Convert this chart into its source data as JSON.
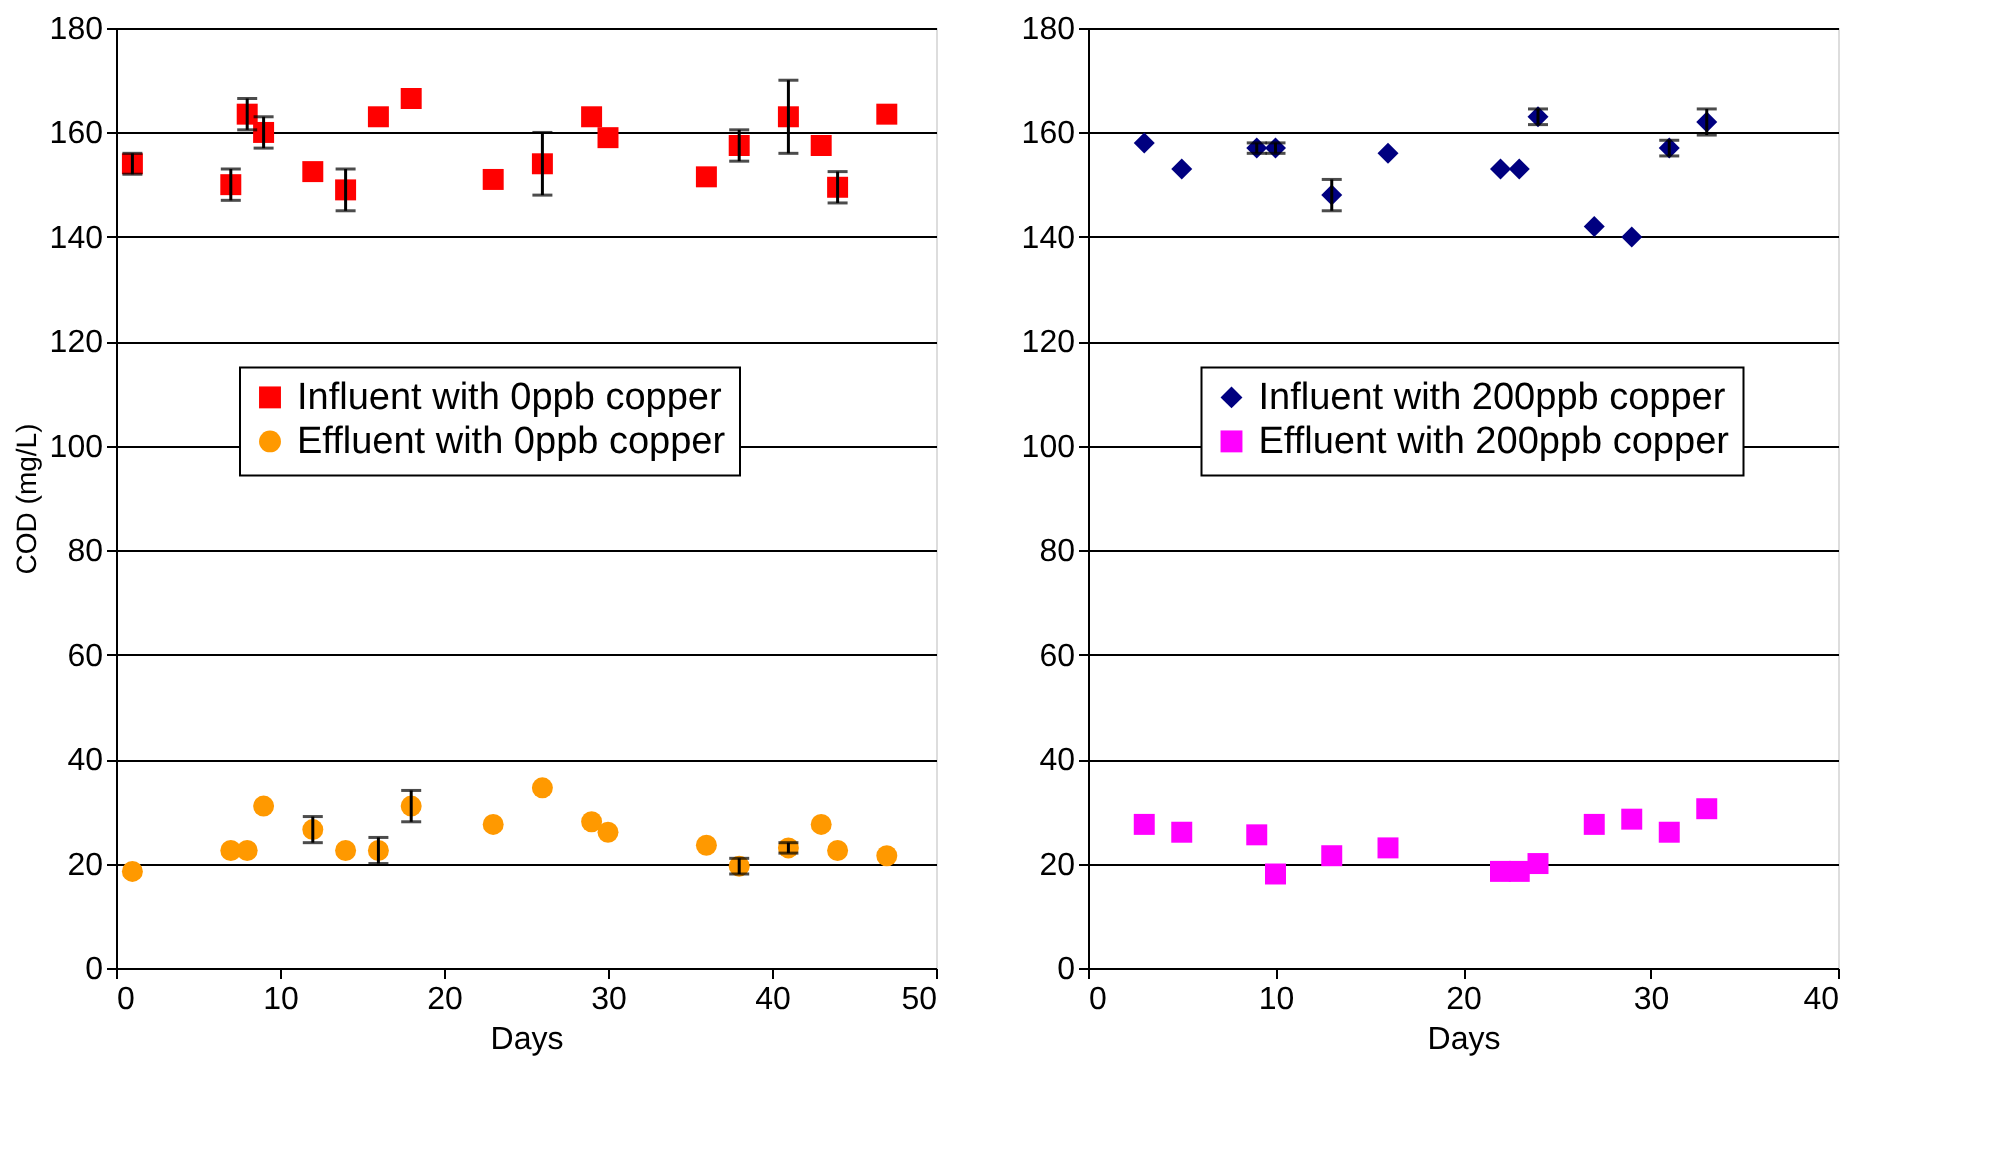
{
  "chart_data": [
    {
      "type": "scatter",
      "xlabel": "Days",
      "ylabel": "COD (mg/L)",
      "xlim": [
        0,
        50
      ],
      "xticks": [
        0,
        10,
        20,
        30,
        40,
        50
      ],
      "ylim": [
        0,
        180
      ],
      "yticks": [
        0,
        20,
        40,
        60,
        80,
        100,
        120,
        140,
        160,
        180
      ],
      "grid": "y",
      "legend": "center",
      "series": [
        {
          "name": "Influent with 0ppb copper",
          "color": "#ff0000",
          "marker": "square",
          "x": [
            1,
            7,
            8,
            9,
            12,
            14,
            16,
            18,
            23,
            26,
            29,
            30,
            36,
            38,
            41,
            43,
            44,
            47
          ],
          "values": [
            154,
            150,
            163.5,
            160,
            152.5,
            149,
            163,
            166.5,
            151,
            154,
            163,
            159,
            151.5,
            157.5,
            163,
            157.5,
            149.5,
            163.5
          ],
          "errors": [
            2,
            3,
            3,
            3,
            null,
            4,
            null,
            null,
            null,
            6,
            null,
            null,
            null,
            3,
            7,
            null,
            3,
            null
          ]
        },
        {
          "name": "Effluent with 0ppb copper",
          "color": "#ff9900",
          "marker": "circle",
          "x": [
            1,
            7,
            8,
            9,
            12,
            14,
            16,
            18,
            23,
            26,
            29,
            30,
            36,
            38,
            41,
            43,
            44,
            47
          ],
          "values": [
            18.5,
            22.5,
            22.5,
            31,
            26.5,
            22.5,
            22.5,
            31,
            27.5,
            34.5,
            28,
            26,
            23.5,
            19.5,
            23,
            27.5,
            22.5,
            21.5
          ],
          "errors": [
            null,
            null,
            null,
            null,
            2.5,
            null,
            2.5,
            3,
            null,
            null,
            null,
            null,
            null,
            1.5,
            1,
            null,
            null,
            null
          ]
        }
      ]
    },
    {
      "type": "scatter",
      "xlabel": "Days",
      "xlim": [
        0,
        40
      ],
      "xticks": [
        0,
        10,
        20,
        30,
        40
      ],
      "ylim": [
        0,
        180
      ],
      "yticks": [
        0,
        20,
        40,
        60,
        80,
        100,
        120,
        140,
        160,
        180
      ],
      "grid": "y",
      "legend": "center",
      "series": [
        {
          "name": "Influent with 200ppb copper",
          "color": "#000080",
          "marker": "diamond",
          "x": [
            3,
            5,
            9,
            10,
            13,
            16,
            22,
            23,
            24,
            27,
            29,
            31,
            33
          ],
          "values": [
            158,
            153,
            157,
            157,
            148,
            156,
            153,
            153,
            163,
            142,
            140,
            157,
            162
          ],
          "errors": [
            null,
            null,
            1,
            1,
            3,
            null,
            null,
            null,
            1.5,
            null,
            null,
            1.5,
            2.5
          ]
        },
        {
          "name": "Effluent with 200ppb copper",
          "color": "#ff00ff",
          "marker": "square",
          "x": [
            3,
            5,
            9,
            10,
            13,
            16,
            22,
            23,
            24,
            27,
            29,
            31,
            33
          ],
          "values": [
            27.5,
            26,
            25.5,
            18,
            21.5,
            23,
            18.5,
            18.5,
            20,
            27.5,
            28.5,
            26,
            30.5
          ]
        }
      ]
    }
  ]
}
